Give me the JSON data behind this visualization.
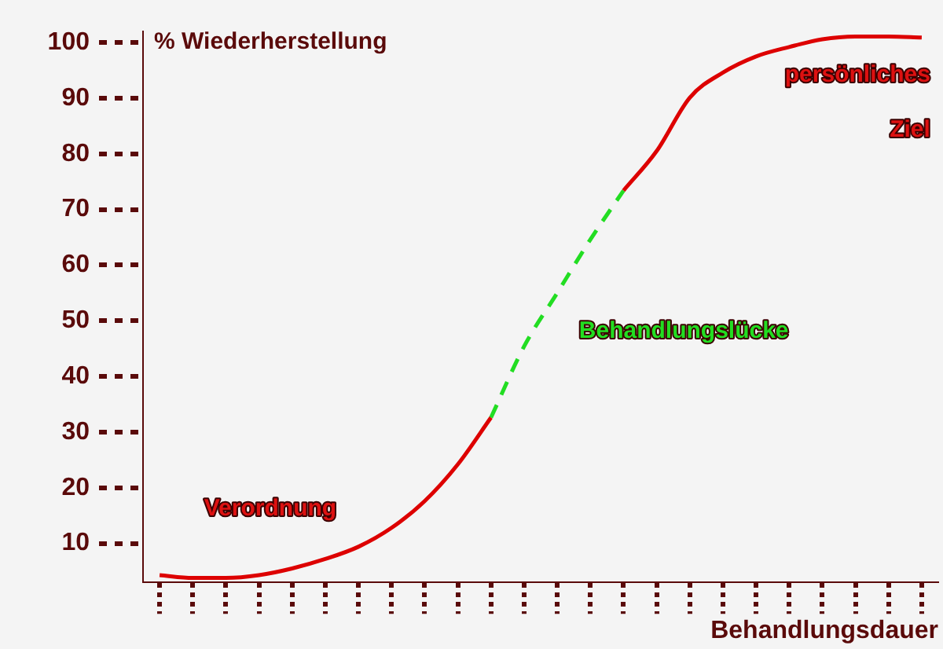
{
  "chart_data": {
    "type": "line",
    "xlabel": "Behandlungsdauer",
    "ylabel": "% Wiederherstellung",
    "categories": [
      null,
      null,
      null,
      null,
      null,
      null,
      null,
      null,
      null,
      null,
      null,
      null,
      null,
      null,
      null,
      null,
      null,
      null,
      null,
      null,
      null,
      null,
      null,
      null
    ],
    "series": [
      {
        "color": "#dd0000",
        "line_style": "solid",
        "values": [
          4.3,
          3.8,
          3.8,
          4.3,
          5.5,
          7.2,
          9.4,
          12.8,
          17.6,
          24.2,
          32.6,
          null,
          null,
          null,
          null,
          null,
          null,
          null,
          null,
          null,
          null,
          null,
          null,
          null
        ]
      },
      {
        "color": "#22dd22",
        "line_style": "dashed",
        "values": [
          null,
          null,
          null,
          null,
          null,
          null,
          null,
          null,
          null,
          null,
          32.6,
          45.4,
          55,
          64.6,
          73.4,
          null,
          null,
          null,
          null,
          null,
          null,
          null,
          null,
          null
        ]
      },
      {
        "color": "#dd0000",
        "line_style": "solid",
        "values": [
          null,
          null,
          null,
          null,
          null,
          null,
          null,
          null,
          null,
          null,
          null,
          null,
          null,
          null,
          73.4,
          80.5,
          90.1,
          94.6,
          97.5,
          99.2,
          100.6,
          101.1,
          101.1,
          100.9
        ]
      }
    ],
    "ylim": [
      3,
      102
    ],
    "yticks": [
      10,
      20,
      30,
      40,
      50,
      60,
      70,
      80,
      90,
      100
    ],
    "grid": false,
    "legend": false,
    "marker": "none",
    "annotations": [
      "Verordnung",
      "Behandlungslücke",
      "persönliches Ziel"
    ]
  }
}
